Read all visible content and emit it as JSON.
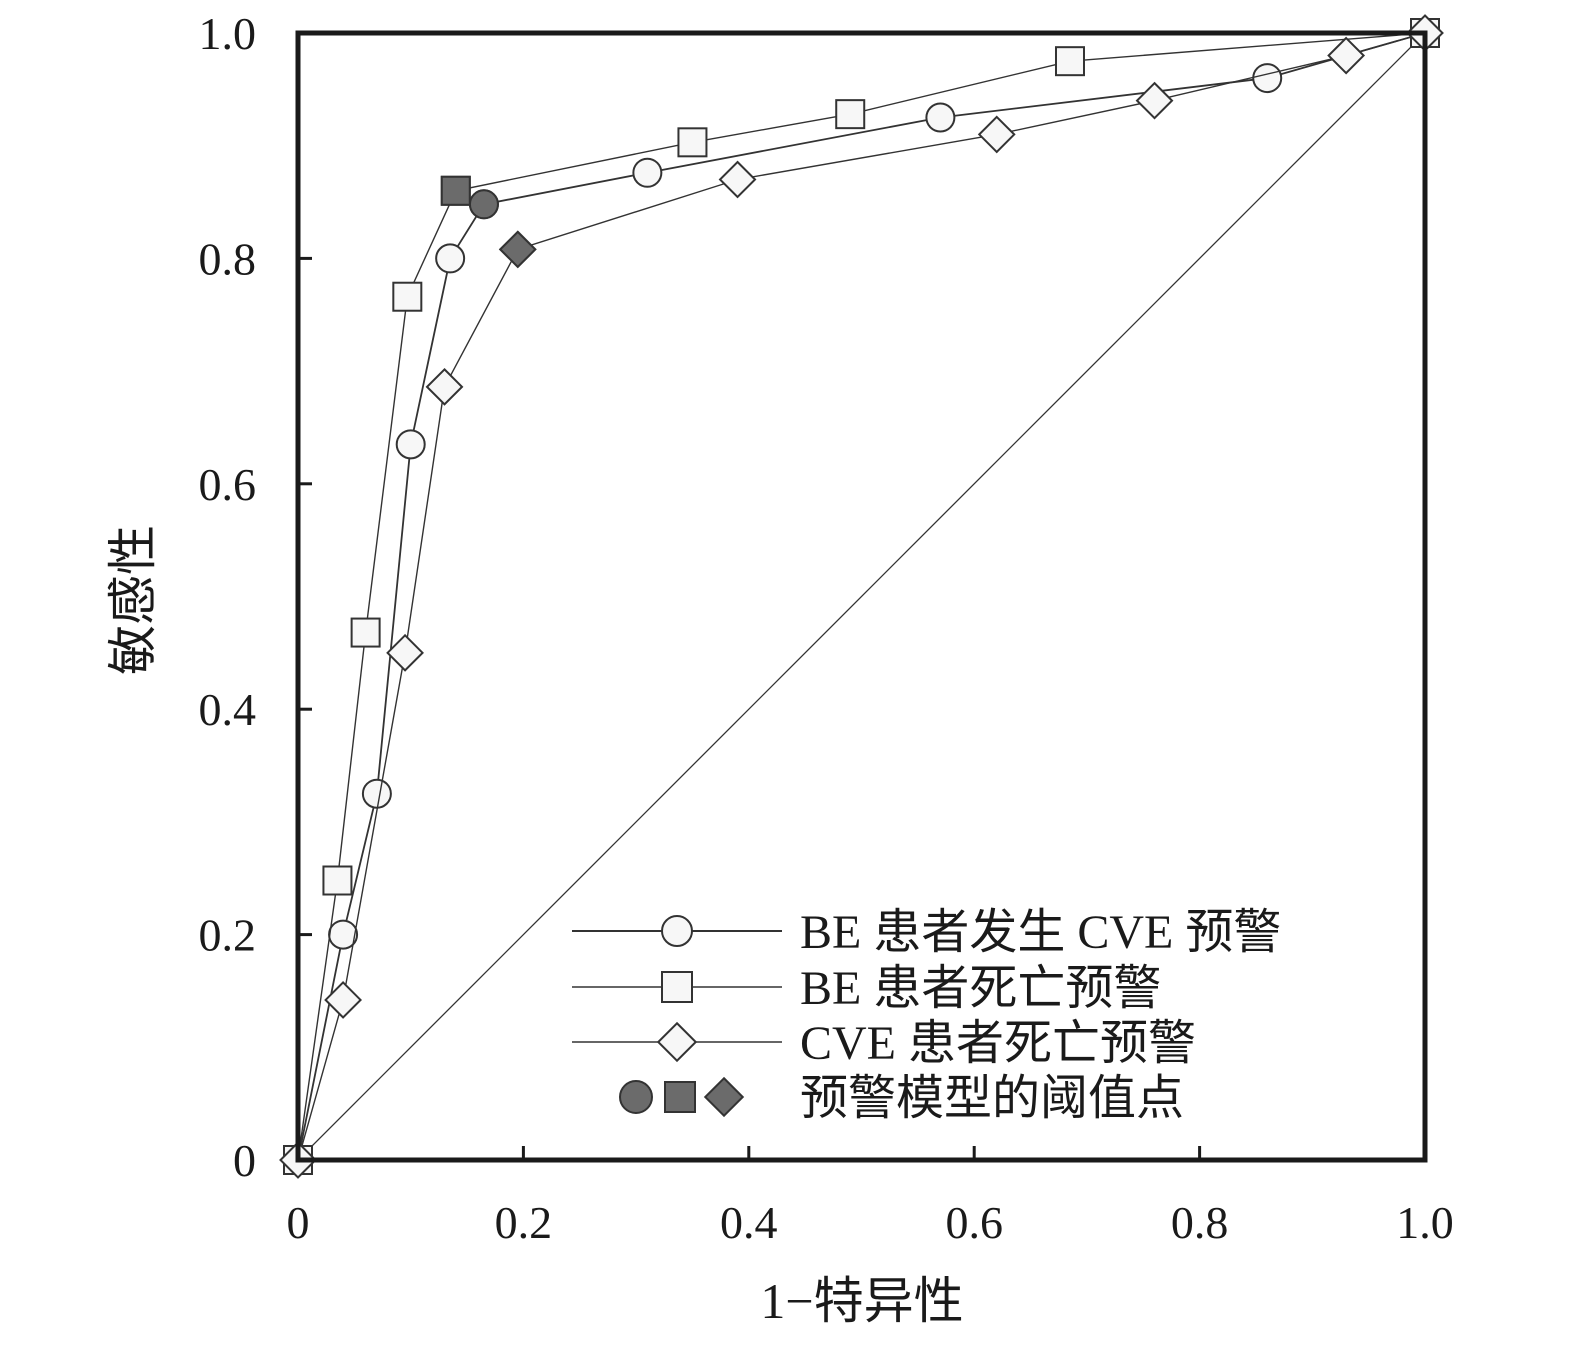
{
  "chart_data": {
    "type": "line",
    "xlabel": "1−特异性",
    "ylabel": "敏感性",
    "xlim": [
      0,
      1.0
    ],
    "ylim": [
      0,
      1.0
    ],
    "x_ticks": [
      "0",
      "0.2",
      "0.4",
      "0.6",
      "0.8",
      "1.0"
    ],
    "y_ticks": [
      "0",
      "0.2",
      "0.4",
      "0.6",
      "0.8",
      "1.0"
    ],
    "grid": false,
    "legend_position": "bottom-right",
    "reference_line": {
      "x": [
        0,
        1.0
      ],
      "y": [
        0,
        1.0
      ]
    },
    "series": [
      {
        "name": "BE 患者发生 CVE 预警",
        "marker": "circle",
        "x": [
          0.0,
          0.04,
          0.07,
          0.1,
          0.135,
          0.165,
          0.31,
          0.57,
          0.86,
          1.0
        ],
        "y": [
          0.0,
          0.2,
          0.325,
          0.635,
          0.8,
          0.848,
          0.876,
          0.925,
          0.96,
          1.0
        ],
        "threshold": {
          "x": 0.165,
          "y": 0.848
        }
      },
      {
        "name": "BE 患者死亡预警",
        "marker": "square",
        "x": [
          0.0,
          0.035,
          0.06,
          0.097,
          0.14,
          0.35,
          0.49,
          0.685,
          1.0
        ],
        "y": [
          0.0,
          0.248,
          0.468,
          0.766,
          0.86,
          0.903,
          0.928,
          0.975,
          1.0
        ],
        "threshold": {
          "x": 0.14,
          "y": 0.86
        }
      },
      {
        "name": "CVE 患者死亡预警",
        "marker": "diamond",
        "x": [
          0.0,
          0.04,
          0.095,
          0.13,
          0.195,
          0.39,
          0.62,
          0.76,
          0.93,
          1.0
        ],
        "y": [
          0.0,
          0.142,
          0.45,
          0.686,
          0.808,
          0.87,
          0.91,
          0.94,
          0.98,
          1.0
        ],
        "threshold": {
          "x": 0.195,
          "y": 0.808
        }
      }
    ],
    "threshold_legend_label": "预警模型的阈值点"
  },
  "colors": {
    "axis": "#1a1a1a",
    "line": "#333333",
    "marker_fill": "#f7f7f7",
    "threshold_fill": "#6b6b6b"
  }
}
